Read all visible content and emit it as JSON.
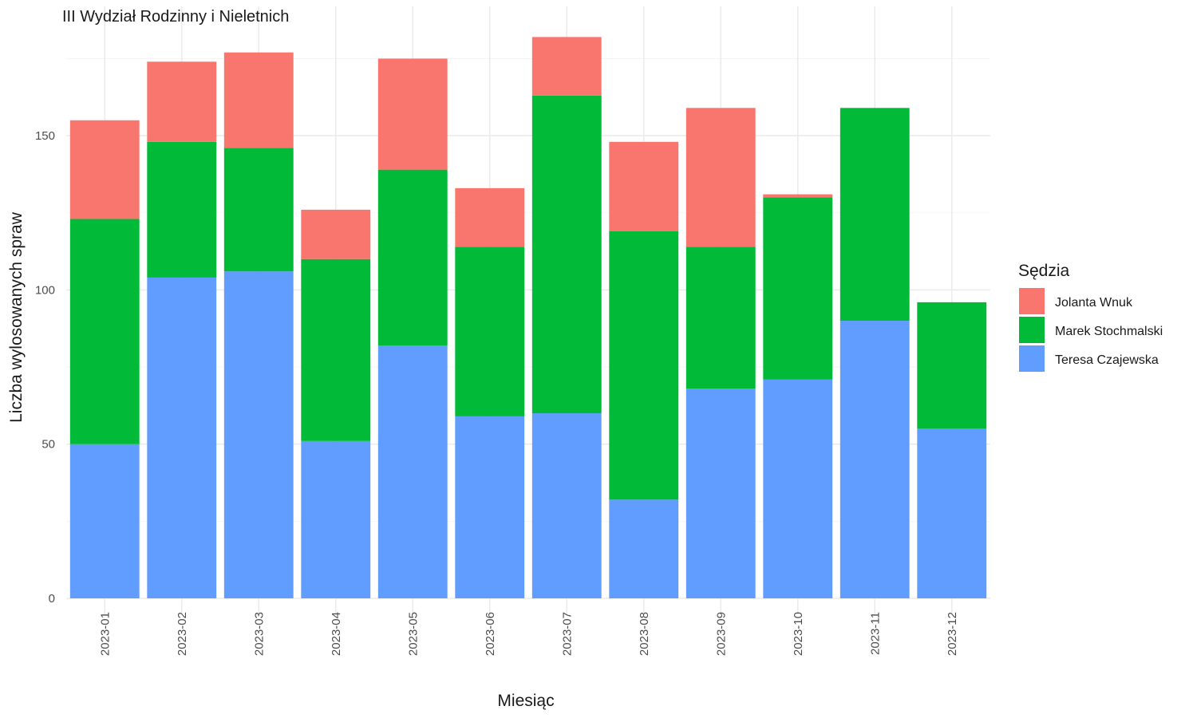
{
  "chart_data": {
    "type": "bar",
    "stacked": true,
    "title": "III Wydział Rodzinny i Nieletnich",
    "xlabel": "Miesiąc",
    "ylabel": "Liczba wylosowanych spraw",
    "ylim": [
      0,
      190
    ],
    "yticks": [
      0,
      50,
      100,
      150
    ],
    "categories": [
      "2023-01",
      "2023-02",
      "2023-03",
      "2023-04",
      "2023-05",
      "2023-06",
      "2023-07",
      "2023-08",
      "2023-09",
      "2023-10",
      "2023-11",
      "2023-12"
    ],
    "legend": {
      "title": "Sędzia",
      "position": "right"
    },
    "grid": true,
    "series": [
      {
        "name": "Teresa Czajewska",
        "color": "#619CFF",
        "values": [
          50,
          104,
          106,
          51,
          82,
          59,
          60,
          32,
          68,
          71,
          90,
          55
        ]
      },
      {
        "name": "Marek Stochmalski",
        "color": "#00BA38",
        "values": [
          73,
          44,
          40,
          59,
          57,
          55,
          103,
          87,
          46,
          59,
          69,
          41
        ]
      },
      {
        "name": "Jolanta Wnuk",
        "color": "#F8766D",
        "values": [
          32,
          26,
          31,
          16,
          36,
          19,
          19,
          29,
          45,
          1,
          0,
          0
        ]
      }
    ]
  }
}
